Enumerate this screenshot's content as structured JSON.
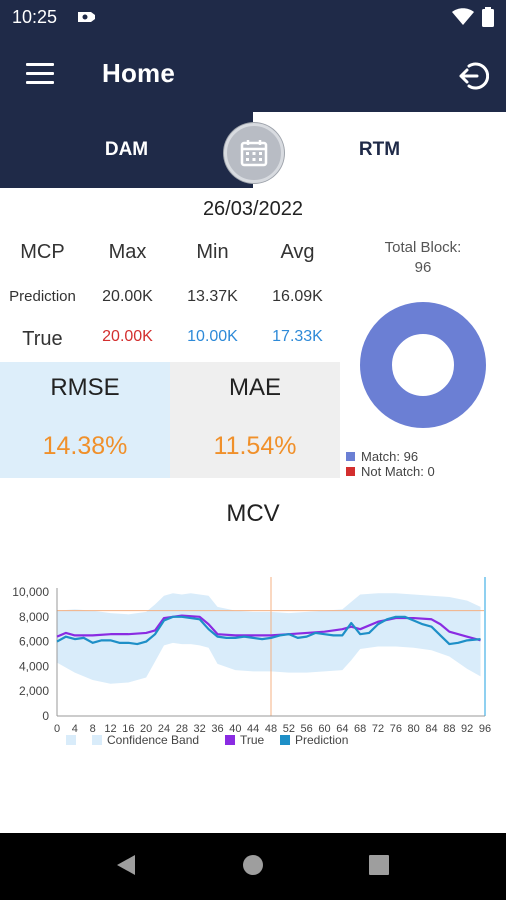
{
  "status": {
    "time": "10:25"
  },
  "appbar": {
    "title": "Home"
  },
  "tabs": [
    {
      "label": "DAM"
    },
    {
      "label": "RTM"
    }
  ],
  "date": "26/03/2022",
  "stats": {
    "headers": [
      "MCP",
      "Max",
      "Min",
      "Avg"
    ],
    "prediction": {
      "label": "Prediction",
      "values": [
        "20.00K",
        "13.37K",
        "16.09K"
      ]
    },
    "true": {
      "label": "True",
      "values": [
        "20.00K",
        "10.00K",
        "17.33K"
      ]
    }
  },
  "metrics": {
    "rmse": {
      "label": "RMSE",
      "value": "14.38%"
    },
    "mae": {
      "label": "MAE",
      "value": "11.54%"
    }
  },
  "blocks": {
    "total_label": "Total Block:",
    "total": "96",
    "match": "Match: 96",
    "not_match": "Not Match: 0",
    "match_count": 96,
    "not_match_count": 0
  },
  "colors": {
    "header": "#1f2a48",
    "accent_orange": "#f0902a",
    "true_max": "#d32f2f",
    "true_min_avg": "#2e8ad8",
    "match": "#6b7fd4",
    "not_match": "#d32f2f",
    "band": "#d9ecfa",
    "true_series": "#8a2be2",
    "prediction_series": "#1e8fc7"
  },
  "chart_data": {
    "type": "line",
    "title": "MCV",
    "ylim": [
      0,
      10000
    ],
    "yticks": [
      0,
      2000,
      4000,
      6000,
      8000,
      10000
    ],
    "ytick_labels": [
      "0",
      "2,000",
      "4,000",
      "6,000",
      "8,000",
      "10,000"
    ],
    "xlim": [
      0,
      96
    ],
    "xticks": [
      0,
      4,
      8,
      12,
      16,
      20,
      24,
      28,
      32,
      36,
      40,
      44,
      48,
      52,
      56,
      60,
      64,
      68,
      72,
      76,
      80,
      84,
      88,
      92,
      96
    ],
    "reference_line_y": 8500,
    "reference_line_x": 48,
    "legend": [
      "Confidence Band",
      "True",
      "Prediction"
    ],
    "band": {
      "x": [
        0,
        4,
        8,
        12,
        16,
        20,
        22,
        24,
        26,
        28,
        30,
        32,
        34,
        36,
        40,
        44,
        48,
        52,
        56,
        60,
        64,
        66,
        68,
        72,
        76,
        80,
        84,
        88,
        92,
        95
      ],
      "upper": [
        8500,
        8600,
        8500,
        8300,
        8200,
        8400,
        9000,
        9700,
        9900,
        9800,
        9900,
        9800,
        9700,
        8800,
        8500,
        8400,
        8400,
        8300,
        8400,
        8500,
        8600,
        9200,
        9800,
        9900,
        9900,
        9800,
        9700,
        9600,
        9300,
        8800
      ],
      "lower": [
        4300,
        3500,
        2900,
        2600,
        2700,
        3100,
        4400,
        5700,
        5900,
        5800,
        5800,
        5700,
        5500,
        4200,
        3700,
        3600,
        3600,
        3500,
        3500,
        3600,
        3700,
        4500,
        5400,
        5600,
        5600,
        5500,
        5300,
        4800,
        3800,
        3200
      ]
    },
    "series": [
      {
        "name": "True",
        "x": [
          0,
          2,
          4,
          8,
          12,
          16,
          20,
          22,
          24,
          28,
          32,
          34,
          36,
          40,
          44,
          48,
          52,
          56,
          60,
          64,
          66,
          68,
          72,
          76,
          80,
          84,
          86,
          88,
          92,
          95
        ],
        "values": [
          6400,
          6700,
          6500,
          6500,
          6600,
          6600,
          6700,
          6900,
          7900,
          8100,
          8000,
          7400,
          6600,
          6500,
          6500,
          6500,
          6600,
          6700,
          6800,
          7000,
          7200,
          7000,
          7600,
          7900,
          7900,
          7800,
          7400,
          6800,
          6400,
          6100
        ]
      },
      {
        "name": "Prediction",
        "x": [
          0,
          2,
          4,
          6,
          8,
          10,
          12,
          14,
          16,
          18,
          20,
          22,
          24,
          26,
          28,
          30,
          32,
          34,
          36,
          38,
          40,
          42,
          44,
          46,
          48,
          50,
          52,
          54,
          56,
          58,
          60,
          62,
          64,
          66,
          68,
          70,
          72,
          74,
          76,
          78,
          80,
          82,
          84,
          86,
          88,
          90,
          92,
          95
        ],
        "values": [
          6000,
          6400,
          6200,
          6300,
          5900,
          6100,
          6100,
          5900,
          5900,
          5800,
          6000,
          6600,
          7700,
          8000,
          8000,
          7900,
          7800,
          7000,
          6400,
          6300,
          6300,
          6400,
          6300,
          6200,
          6300,
          6500,
          6600,
          6300,
          6400,
          6700,
          6600,
          6500,
          6500,
          7500,
          6600,
          6700,
          7400,
          7800,
          8000,
          8000,
          7700,
          7400,
          7200,
          6500,
          5800,
          5900,
          6100,
          6200
        ]
      }
    ]
  }
}
